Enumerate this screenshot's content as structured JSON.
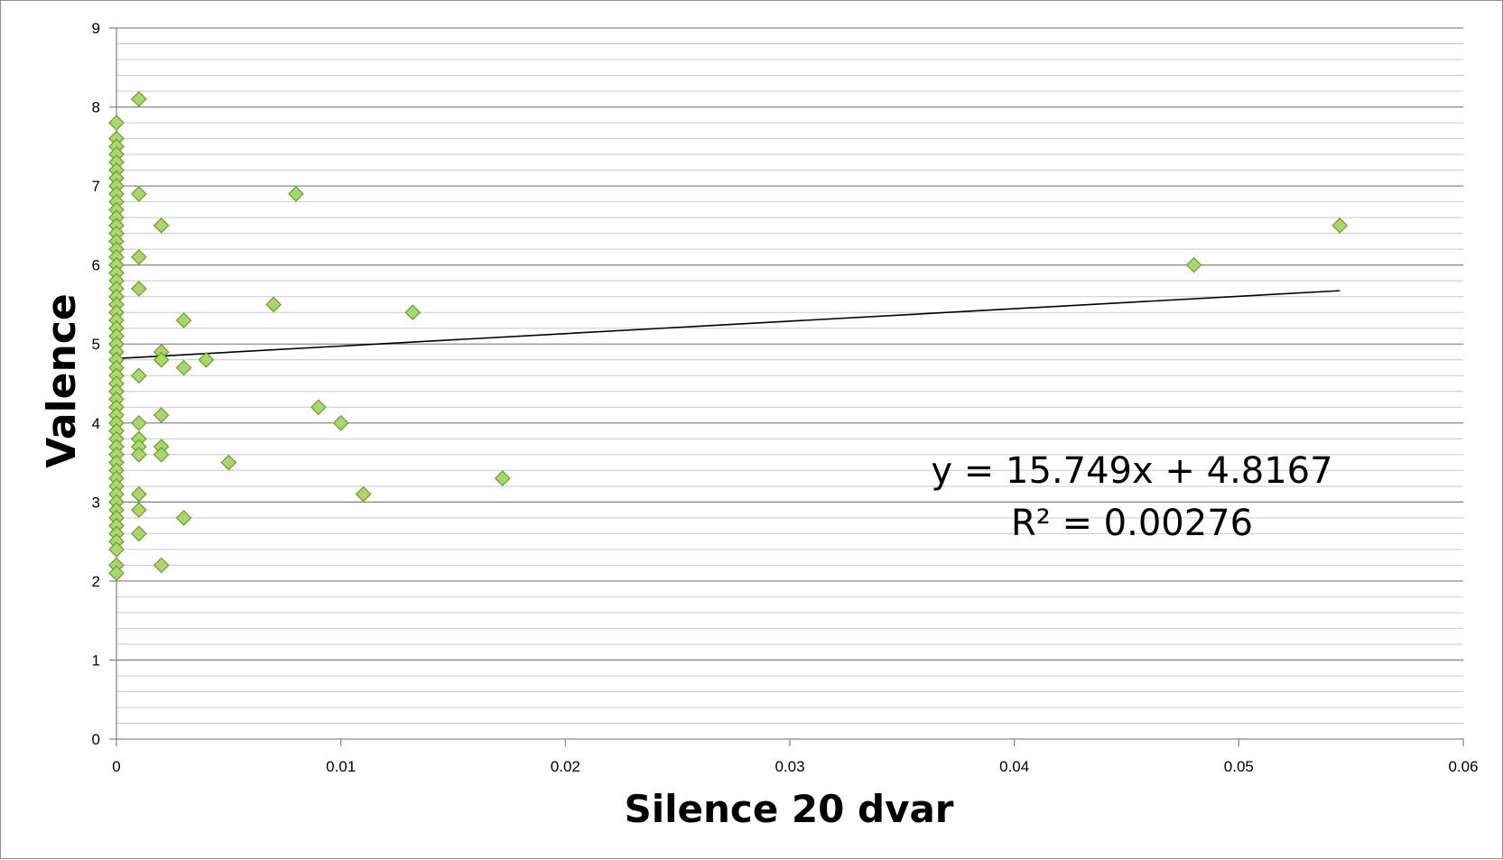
{
  "chart_data": {
    "type": "scatter",
    "title": "",
    "xlabel": "Silence 20 dvar",
    "ylabel": "Valence",
    "xlim": [
      0,
      0.06
    ],
    "ylim": [
      0,
      9
    ],
    "x_ticks": [
      "0",
      "0.01",
      "0.02",
      "0.03",
      "0.04",
      "0.05",
      "0.06"
    ],
    "y_ticks": [
      "0",
      "1",
      "2",
      "3",
      "4",
      "5",
      "6",
      "7",
      "8",
      "9"
    ],
    "grid": {
      "major_y": true,
      "minor_y": true,
      "minor_y_step": 0.2
    },
    "legend": "none",
    "marker": {
      "shape": "diamond",
      "fill": "#a8d86a",
      "stroke": "#6e9a2e"
    },
    "trendline": {
      "type": "linear",
      "slope": 15.749,
      "intercept": 4.8167,
      "x_range": [
        0,
        0.0545
      ],
      "color": "#000000",
      "equation_text": "y = 15.749x + 4.8167",
      "r2_text": "R² = 0.00276"
    },
    "series": [
      {
        "points": [
          [
            0,
            7.8
          ],
          [
            0,
            7.6
          ],
          [
            0,
            7.5
          ],
          [
            0,
            7.4
          ],
          [
            0,
            7.3
          ],
          [
            0,
            7.2
          ],
          [
            0,
            7.1
          ],
          [
            0,
            7.0
          ],
          [
            0,
            6.9
          ],
          [
            0,
            6.8
          ],
          [
            0,
            6.7
          ],
          [
            0,
            6.6
          ],
          [
            0,
            6.5
          ],
          [
            0,
            6.4
          ],
          [
            0,
            6.3
          ],
          [
            0,
            6.2
          ],
          [
            0,
            6.1
          ],
          [
            0,
            6.0
          ],
          [
            0,
            5.9
          ],
          [
            0,
            5.8
          ],
          [
            0,
            5.7
          ],
          [
            0,
            5.6
          ],
          [
            0,
            5.5
          ],
          [
            0,
            5.4
          ],
          [
            0,
            5.3
          ],
          [
            0,
            5.2
          ],
          [
            0,
            5.1
          ],
          [
            0,
            5.0
          ],
          [
            0,
            4.9
          ],
          [
            0,
            4.8
          ],
          [
            0,
            4.7
          ],
          [
            0,
            4.6
          ],
          [
            0,
            4.5
          ],
          [
            0,
            4.4
          ],
          [
            0,
            4.3
          ],
          [
            0,
            4.2
          ],
          [
            0,
            4.1
          ],
          [
            0,
            4.0
          ],
          [
            0,
            3.9
          ],
          [
            0,
            3.8
          ],
          [
            0,
            3.7
          ],
          [
            0,
            3.6
          ],
          [
            0,
            3.5
          ],
          [
            0,
            3.4
          ],
          [
            0,
            3.3
          ],
          [
            0,
            3.2
          ],
          [
            0,
            3.1
          ],
          [
            0,
            3.0
          ],
          [
            0,
            2.9
          ],
          [
            0,
            2.8
          ],
          [
            0,
            2.7
          ],
          [
            0,
            2.6
          ],
          [
            0,
            2.5
          ],
          [
            0,
            2.4
          ],
          [
            0,
            2.2
          ],
          [
            0,
            2.1
          ],
          [
            0.001,
            8.1
          ],
          [
            0.001,
            6.9
          ],
          [
            0.001,
            6.1
          ],
          [
            0.001,
            5.7
          ],
          [
            0.001,
            4.6
          ],
          [
            0.001,
            4.0
          ],
          [
            0.001,
            3.8
          ],
          [
            0.001,
            3.7
          ],
          [
            0.001,
            3.6
          ],
          [
            0.001,
            3.1
          ],
          [
            0.001,
            2.9
          ],
          [
            0.001,
            2.6
          ],
          [
            0.002,
            6.5
          ],
          [
            0.002,
            4.9
          ],
          [
            0.002,
            4.8
          ],
          [
            0.002,
            4.1
          ],
          [
            0.002,
            3.7
          ],
          [
            0.002,
            3.6
          ],
          [
            0.002,
            2.2
          ],
          [
            0.003,
            5.3
          ],
          [
            0.003,
            4.7
          ],
          [
            0.003,
            2.8
          ],
          [
            0.004,
            4.8
          ],
          [
            0.005,
            3.5
          ],
          [
            0.007,
            5.5
          ],
          [
            0.008,
            6.9
          ],
          [
            0.009,
            4.2
          ],
          [
            0.01,
            4.0
          ],
          [
            0.011,
            3.1
          ],
          [
            0.0132,
            5.4
          ],
          [
            0.0172,
            3.3
          ],
          [
            0.048,
            6.0
          ],
          [
            0.0545,
            6.5
          ]
        ]
      }
    ]
  }
}
